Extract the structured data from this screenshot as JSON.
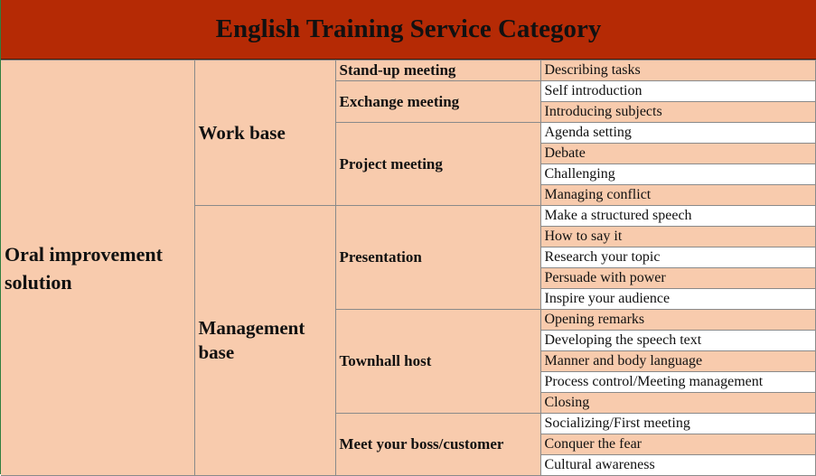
{
  "title": "English Training Service Category",
  "category": "Oral improvement solution",
  "bases": [
    {
      "name": "Work base",
      "meetings": [
        {
          "name": "Stand-up meeting",
          "items": [
            "Describing tasks"
          ]
        },
        {
          "name": "Exchange meeting",
          "items": [
            "Self introduction",
            "Introducing subjects"
          ]
        },
        {
          "name": "Project meeting",
          "items": [
            "Agenda setting",
            "Debate",
            "Challenging",
            "Managing conflict"
          ]
        }
      ]
    },
    {
      "name": "Management base",
      "meetings": [
        {
          "name": "Presentation",
          "items": [
            "Make a structured speech",
            "How to say it",
            "Research your topic",
            "Persuade with power",
            "Inspire your audience"
          ]
        },
        {
          "name": "Townhall host",
          "items": [
            "Opening remarks",
            "Developing the speech text",
            "Manner and body language",
            "Process control/Meeting management",
            "Closing"
          ]
        },
        {
          "name": "Meet your boss/customer",
          "items": [
            "Socializing/First meeting",
            "Conquer the fear",
            "Cultural awareness"
          ]
        }
      ]
    }
  ],
  "colors": {
    "header_bg": "#b52a05",
    "cell_shade": "#f8cbad",
    "cell_plain": "#ffffff"
  }
}
